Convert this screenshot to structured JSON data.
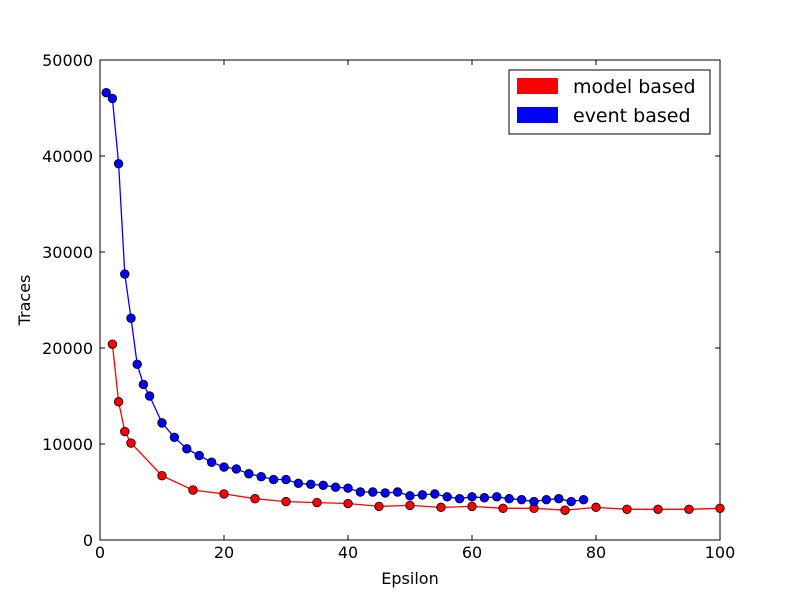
{
  "chart_data": {
    "type": "line",
    "xlabel": "Epsilon",
    "ylabel": "Traces",
    "xlim": [
      0,
      100
    ],
    "ylim": [
      0,
      50000
    ],
    "xticks": [
      0,
      20,
      40,
      60,
      80,
      100
    ],
    "yticks": [
      0,
      10000,
      20000,
      30000,
      40000,
      50000
    ],
    "grid": false,
    "legend_position": "top-right",
    "series": [
      {
        "name": "model based",
        "color": "#ff0000",
        "x": [
          2,
          3,
          4,
          5,
          10,
          15,
          20,
          25,
          30,
          35,
          40,
          45,
          50,
          55,
          60,
          65,
          70,
          75,
          80,
          85,
          90,
          95,
          100
        ],
        "y": [
          20400,
          14400,
          11300,
          10100,
          6700,
          5200,
          4800,
          4300,
          4000,
          3900,
          3800,
          3500,
          3600,
          3400,
          3500,
          3300,
          3300,
          3100,
          3400,
          3200,
          3200,
          3200,
          3300
        ]
      },
      {
        "name": "event based",
        "color": "#0000ff",
        "x": [
          1,
          2,
          3,
          4,
          5,
          6,
          7,
          8,
          10,
          12,
          14,
          16,
          18,
          20,
          22,
          24,
          26,
          28,
          30,
          32,
          34,
          36,
          38,
          40,
          42,
          44,
          46,
          48,
          50,
          52,
          54,
          56,
          58,
          60,
          62,
          64,
          66,
          68,
          70,
          72,
          74,
          76,
          78
        ],
        "y": [
          46600,
          46000,
          39200,
          27700,
          23100,
          18300,
          16200,
          15000,
          12200,
          10700,
          9500,
          8800,
          8100,
          7600,
          7400,
          6900,
          6600,
          6300,
          6300,
          5900,
          5800,
          5700,
          5500,
          5400,
          5000,
          5000,
          4900,
          5000,
          4600,
          4700,
          4800,
          4500,
          4300,
          4500,
          4400,
          4500,
          4300,
          4200,
          4000,
          4200,
          4300,
          4000,
          4200
        ]
      }
    ]
  }
}
